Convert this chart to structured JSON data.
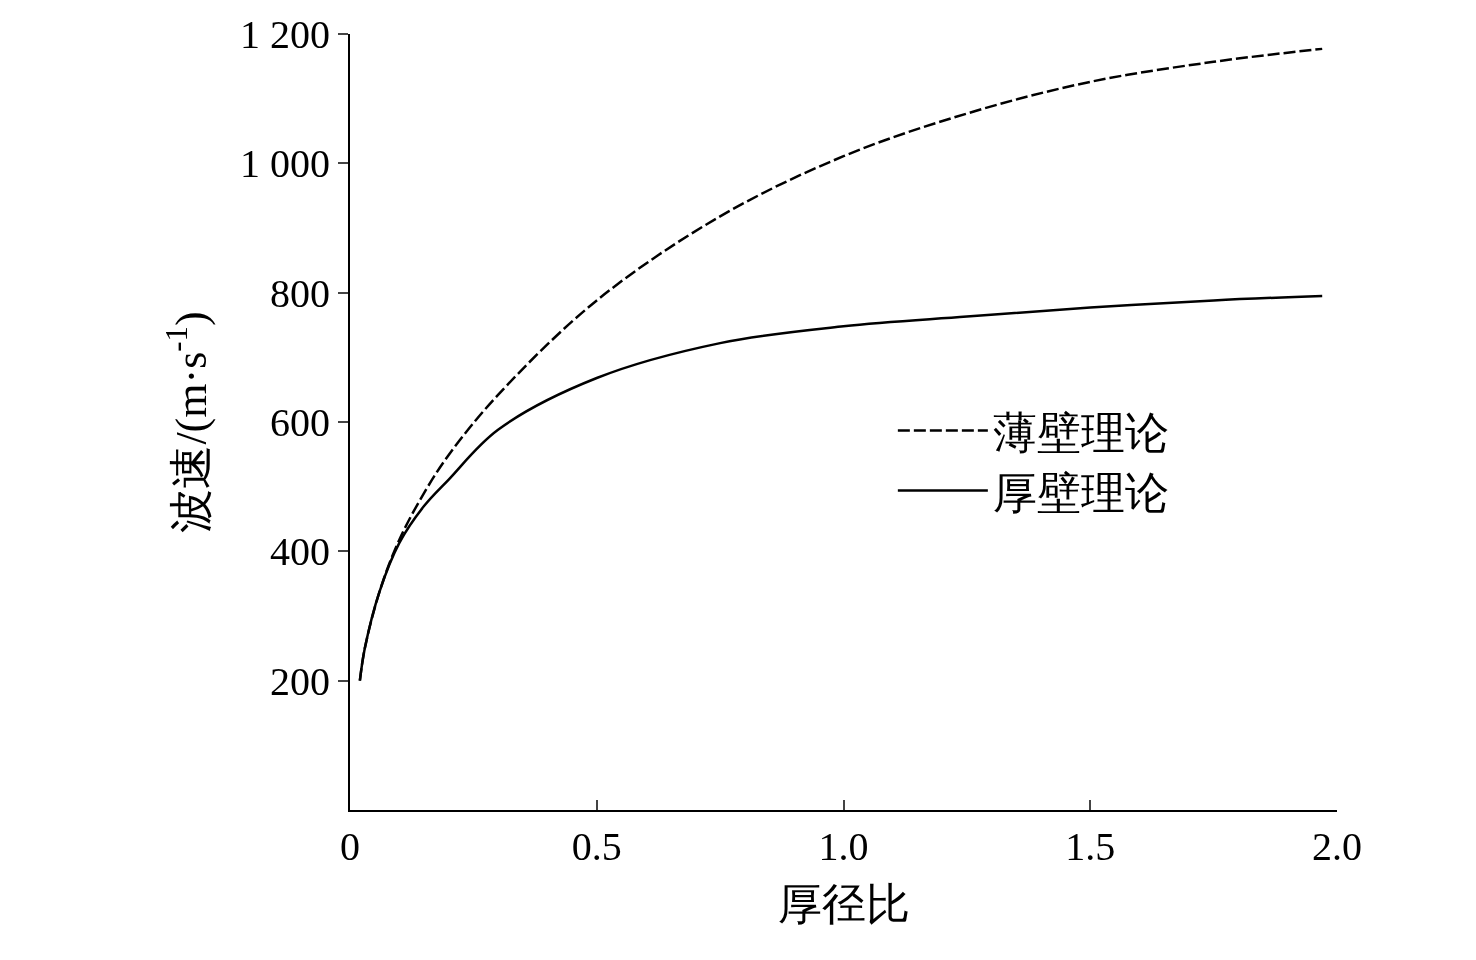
{
  "chart_data": {
    "type": "line",
    "xlabel": "厚径比",
    "ylabel": "波速/(m·s$^{-1}$)",
    "xlim": [
      0,
      2
    ],
    "xticks": [
      {
        "value": 0,
        "label": "0"
      },
      {
        "value": 0.5,
        "label": "0.5"
      },
      {
        "value": 1,
        "label": "1.0"
      },
      {
        "value": 1.5,
        "label": "1.5"
      },
      {
        "value": 2,
        "label": "2.0"
      }
    ],
    "ylim": [
      0,
      1200
    ],
    "yticks": [
      200,
      400,
      600,
      800,
      {
        "value": 1000,
        "label": "1 000"
      },
      {
        "value": 1200,
        "label": "1 200"
      }
    ],
    "x": [
      0.02,
      0.03,
      0.06,
      0.1,
      0.15,
      0.2,
      0.3,
      0.5,
      0.75,
      1.0,
      1.25,
      1.5,
      1.75,
      1.97
    ],
    "series": [
      {
        "name": "薄壁理论",
        "color": "#000000",
        "line_style": "dashed",
        "values": [
          200,
          250,
          338,
          418,
          490,
          549,
          642,
          788,
          918,
          1011,
          1077,
          1126,
          1157,
          1177
        ]
      },
      {
        "name": "厚壁理论",
        "color": "#000000",
        "line_style": "solid",
        "values": [
          200,
          250,
          338,
          413,
          470,
          511,
          588,
          668,
          722,
          748,
          763,
          777,
          788,
          795
        ]
      }
    ],
    "grid": false,
    "legend": "right",
    "marker": "none"
  }
}
